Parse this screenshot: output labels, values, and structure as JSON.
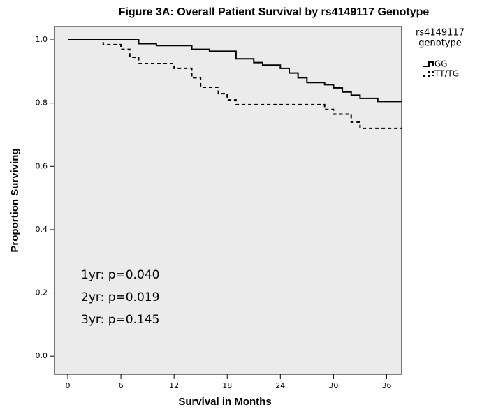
{
  "chart_data": {
    "type": "step",
    "title": "Figure 3A:  Overall Patient Survival by rs4149117 Genotype",
    "x_label": "Survival in Months",
    "y_label": "Proportion Surviving",
    "legend_title": [
      "rs4149117",
      "genotype"
    ],
    "annotations": [
      "1yr: p=0.040",
      "2yr: p=0.019",
      "3yr: p=0.145"
    ],
    "xlim": [
      -1.5,
      37.7
    ],
    "ylim": [
      -0.057,
      1.042
    ],
    "xticks": [
      0,
      6,
      12,
      18,
      24,
      30,
      36
    ],
    "yticks": [
      {
        "value": 0,
        "label": "0.0"
      },
      {
        "value": 0.2,
        "label": "0.2"
      },
      {
        "value": 0.4,
        "label": "0.4"
      },
      {
        "value": 0.6,
        "label": "0.6"
      },
      {
        "value": 0.8,
        "label": "0.8"
      },
      {
        "value": 1,
        "label": "1.0"
      }
    ],
    "series": [
      {
        "name": "GG",
        "color": "#000000",
        "dash": false,
        "x": [
          0,
          8,
          10,
          14,
          16,
          19,
          21,
          22,
          24,
          25,
          26,
          27,
          29,
          30,
          31,
          32,
          33,
          35,
          37.7
        ],
        "values": [
          1.0,
          0.988,
          0.982,
          0.97,
          0.964,
          0.94,
          0.928,
          0.92,
          0.91,
          0.895,
          0.88,
          0.865,
          0.858,
          0.848,
          0.835,
          0.825,
          0.815,
          0.805,
          0.805
        ]
      },
      {
        "name": "TT/TG",
        "color": "#000000",
        "dash": true,
        "x": [
          0,
          4,
          6,
          7,
          8,
          12,
          14,
          15,
          17,
          18,
          19,
          29,
          30,
          32,
          33,
          37.7
        ],
        "values": [
          1.0,
          0.985,
          0.97,
          0.945,
          0.925,
          0.91,
          0.88,
          0.85,
          0.83,
          0.81,
          0.795,
          0.78,
          0.765,
          0.74,
          0.72,
          0.72
        ]
      }
    ]
  }
}
